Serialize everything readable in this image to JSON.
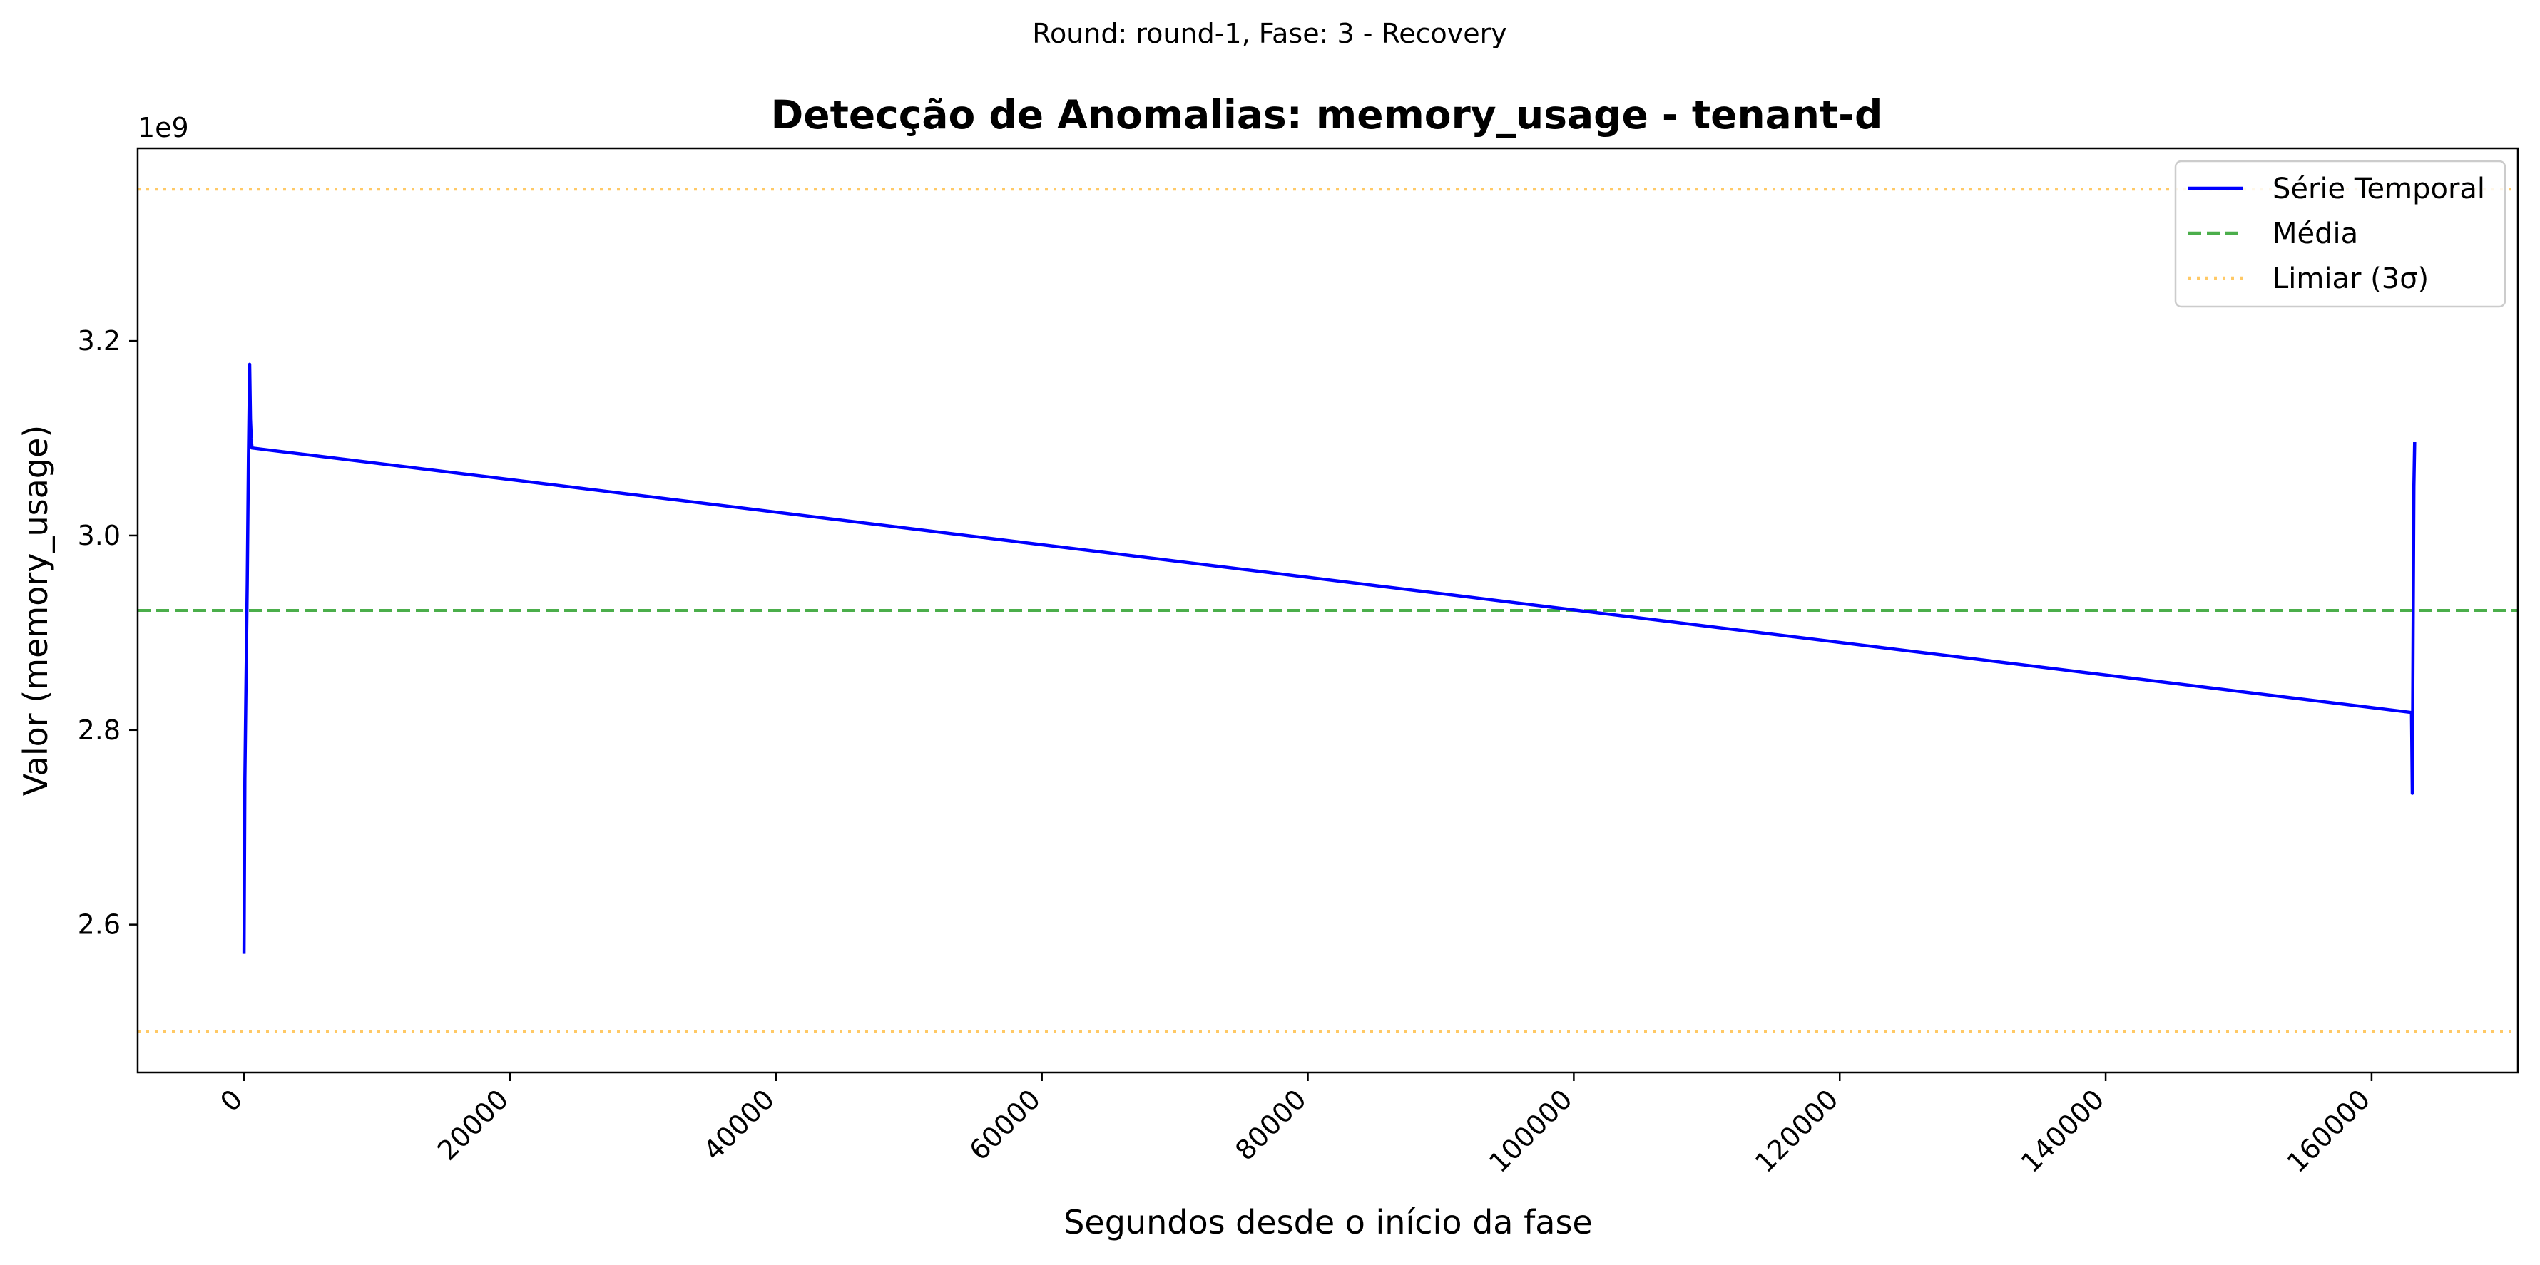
{
  "suptitle": "Round: round-1, Fase: 3 - Recovery",
  "chart_data": {
    "type": "line",
    "title": "Detecção de Anomalias: memory_usage - tenant-d",
    "xlabel": "Segundos desde o início da fase",
    "ylabel": "Valor (memory_usage)",
    "y_offset_label": "1e9",
    "xlim": [
      -8000,
      171000
    ],
    "ylim": [
      2448000000.0,
      3398000000.0
    ],
    "x_ticks": [
      0,
      20000,
      40000,
      60000,
      80000,
      100000,
      120000,
      140000,
      160000
    ],
    "x_tick_labels": [
      "0",
      "20000",
      "40000",
      "60000",
      "80000",
      "100000",
      "120000",
      "140000",
      "160000"
    ],
    "y_ticks": [
      2600000000.0,
      2800000000.0,
      3000000000.0,
      3200000000.0
    ],
    "y_tick_labels": [
      "2.6",
      "2.8",
      "3.0",
      "3.2"
    ],
    "grid": false,
    "legend_position": "top-right",
    "series": [
      {
        "name": "Série Temporal",
        "style": "solid",
        "color": "#0000ff",
        "x": [
          0,
          60,
          150,
          240,
          330,
          420,
          480,
          540,
          600,
          163000,
          163060,
          163120,
          163180,
          163240
        ],
        "y": [
          2570000000.0,
          2750000000.0,
          2850000000.0,
          2950000000.0,
          3080000000.0,
          3176000000.0,
          3120000000.0,
          3100000000.0,
          3090000000.0,
          2818000000.0,
          2735000000.0,
          2900000000.0,
          3050000000.0,
          3096000000.0
        ]
      }
    ],
    "reference_lines": [
      {
        "name": "Média",
        "style": "dashed",
        "color": "#2ca02c",
        "y": 2923000000.0
      },
      {
        "name": "Limiar (3σ)",
        "style": "dotted",
        "color": "#ffa500",
        "y": 3356000000.0
      },
      {
        "name": "",
        "style": "dotted",
        "color": "#ffa500",
        "y": 2490000000.0
      }
    ]
  }
}
